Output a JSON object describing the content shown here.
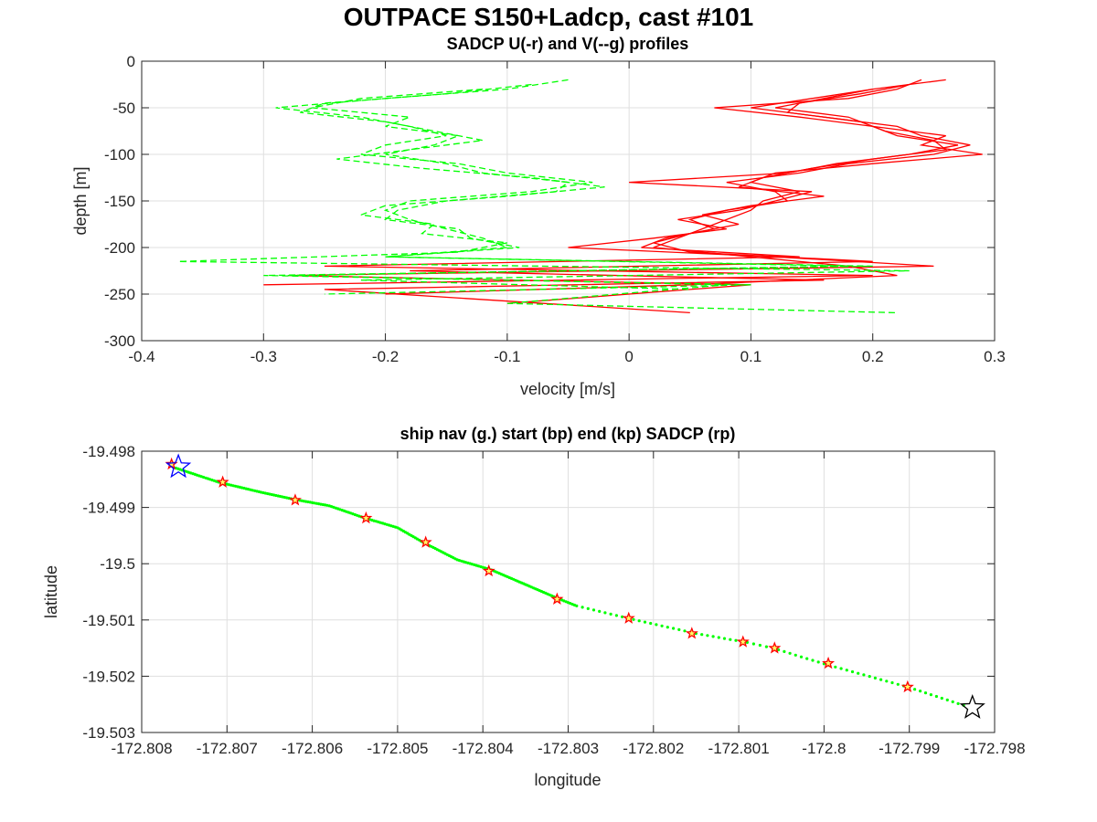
{
  "figure": {
    "title": "OUTPACE S150+Ladcp, cast #101"
  },
  "chart_data": [
    {
      "type": "line",
      "title": "SADCP U(-r) and V(--g) profiles",
      "xlabel": "velocity [m/s]",
      "ylabel": "depth [m]",
      "xlim": [
        -0.4,
        0.3
      ],
      "ylim": [
        -300,
        0
      ],
      "xticks": [
        -0.4,
        -0.3,
        -0.2,
        -0.1,
        0,
        0.1,
        0.2,
        0.3
      ],
      "yticks": [
        0,
        -50,
        -100,
        -150,
        -200,
        -250,
        -300
      ],
      "xtick_labels": [
        "-0.4",
        "-0.3",
        "-0.2",
        "-0.1",
        "0",
        "0.1",
        "0.2",
        "0.3"
      ],
      "ytick_labels": [
        "0",
        "-50",
        "-100",
        "-150",
        "-200",
        "-250",
        "-300"
      ],
      "grid": true,
      "colors": {
        "u": "#ff0000",
        "v": "#00ff00"
      },
      "series": [
        {
          "component": "U",
          "style": "solid",
          "color": "#ff0000",
          "depth": [
            -20,
            -30,
            -40,
            -50,
            -60,
            -70,
            -80,
            -90,
            -100,
            -110,
            -120,
            -130,
            -140,
            -150,
            -160,
            -170,
            -180,
            -190,
            -200,
            -210,
            -220,
            -230,
            -240,
            -250
          ],
          "values": [
            0.24,
            0.22,
            0.18,
            0.07,
            0.14,
            0.2,
            0.26,
            0.24,
            0.29,
            0.2,
            0.12,
            0.1,
            0.14,
            0.11,
            0.1,
            0.08,
            0.06,
            0.04,
            0.02,
            0.1,
            0.18,
            0.22,
            0.05,
            -0.2
          ]
        },
        {
          "component": "U",
          "style": "solid",
          "color": "#ff0000",
          "depth": [
            -20,
            -30,
            -40,
            -50,
            -60,
            -70,
            -80,
            -90,
            -100,
            -110,
            -120,
            -130,
            -140,
            -150,
            -160,
            -170,
            -180,
            -190,
            -200,
            -210,
            -220,
            -230,
            -240
          ],
          "values": [
            0.26,
            0.2,
            0.15,
            0.1,
            0.16,
            0.22,
            0.24,
            0.28,
            0.25,
            0.18,
            0.14,
            0.08,
            0.12,
            0.13,
            0.08,
            0.05,
            0.07,
            0.03,
            0.01,
            0.14,
            -0.25,
            0.2,
            -0.3
          ]
        },
        {
          "component": "U",
          "style": "solid",
          "color": "#ff0000",
          "depth": [
            -30,
            -40,
            -50,
            -60,
            -70,
            -80,
            -90,
            -100,
            -110,
            -120,
            -130,
            -140,
            -150,
            -160,
            -170,
            -180,
            -190,
            -200,
            -210,
            -220,
            -230,
            -240,
            -260
          ],
          "values": [
            0.2,
            0.16,
            0.12,
            0.18,
            0.2,
            0.22,
            0.27,
            0.23,
            0.17,
            0.13,
            0.0,
            0.15,
            0.12,
            0.09,
            0.04,
            0.08,
            0.02,
            -0.05,
            0.12,
            0.25,
            -0.28,
            0.1,
            -0.1
          ]
        },
        {
          "component": "U",
          "style": "solid",
          "color": "#ff0000",
          "depth": [
            -25,
            -35,
            -45,
            -55,
            -65,
            -75,
            -85,
            -95,
            -105,
            -115,
            -125,
            -135,
            -145,
            -155,
            -165,
            -175,
            -185,
            -195,
            -205,
            -215,
            -225,
            -235,
            -245,
            -270
          ],
          "values": [
            0.23,
            0.19,
            0.14,
            0.13,
            0.19,
            0.21,
            0.25,
            0.26,
            0.2,
            0.15,
            0.11,
            0.09,
            0.16,
            0.1,
            0.06,
            0.09,
            0.05,
            0.02,
            0.05,
            0.2,
            -0.18,
            0.16,
            -0.25,
            0.05
          ]
        },
        {
          "component": "V",
          "style": "dashed",
          "color": "#00ff00",
          "depth": [
            -20,
            -30,
            -40,
            -50,
            -60,
            -70,
            -80,
            -90,
            -100,
            -110,
            -120,
            -130,
            -140,
            -150,
            -160,
            -170,
            -180,
            -190,
            -200,
            -210,
            -220,
            -230,
            -240,
            -250
          ],
          "values": [
            -0.05,
            -0.1,
            -0.2,
            -0.29,
            -0.22,
            -0.18,
            -0.15,
            -0.2,
            -0.22,
            -0.14,
            -0.1,
            -0.03,
            -0.08,
            -0.18,
            -0.2,
            -0.18,
            -0.15,
            -0.12,
            -0.1,
            -0.2,
            0.2,
            -0.3,
            0.1,
            -0.25
          ]
        },
        {
          "component": "V",
          "style": "dashed",
          "color": "#00ff00",
          "depth": [
            -25,
            -35,
            -45,
            -55,
            -65,
            -75,
            -85,
            -95,
            -105,
            -115,
            -125,
            -135,
            -145,
            -155,
            -165,
            -175,
            -185,
            -195,
            -205,
            -215,
            -225,
            -235,
            -245
          ],
          "values": [
            -0.08,
            -0.15,
            -0.25,
            -0.27,
            -0.2,
            -0.16,
            -0.12,
            -0.18,
            -0.24,
            -0.17,
            -0.08,
            -0.02,
            -0.1,
            -0.2,
            -0.22,
            -0.16,
            -0.17,
            -0.1,
            -0.14,
            -0.37,
            0.23,
            -0.22,
            0.05
          ]
        },
        {
          "component": "V",
          "style": "dashed",
          "color": "#00ff00",
          "depth": [
            -30,
            -40,
            -50,
            -60,
            -70,
            -80,
            -90,
            -100,
            -110,
            -120,
            -130,
            -140,
            -150,
            -160,
            -170,
            -180,
            -190,
            -200,
            -210,
            -220,
            -230,
            -240,
            -260,
            -270
          ],
          "values": [
            -0.12,
            -0.22,
            -0.26,
            -0.18,
            -0.2,
            -0.14,
            -0.16,
            -0.2,
            -0.15,
            -0.12,
            -0.05,
            -0.06,
            -0.15,
            -0.19,
            -0.2,
            -0.14,
            -0.13,
            -0.09,
            -0.2,
            0.18,
            -0.28,
            0.08,
            -0.1,
            0.22
          ]
        }
      ]
    },
    {
      "type": "scatter",
      "title": "ship nav (g.) start (bp) end (kp) SADCP (rp)",
      "xlabel": "longitude",
      "ylabel": "latitude",
      "xlim": [
        -172.808,
        -172.798
      ],
      "ylim": [
        -19.503,
        -19.498
      ],
      "xticks": [
        -172.808,
        -172.807,
        -172.806,
        -172.805,
        -172.804,
        -172.803,
        -172.802,
        -172.801,
        -172.8,
        -172.799,
        -172.798
      ],
      "yticks": [
        -19.498,
        -19.499,
        -19.5,
        -19.501,
        -19.502,
        -19.503
      ],
      "xtick_labels": [
        "-172.808",
        "-172.807",
        "-172.806",
        "-172.805",
        "-172.804",
        "-172.803",
        "-172.802",
        "-172.801",
        "-172.8",
        "-172.799",
        "-172.798"
      ],
      "ytick_labels": [
        "-19.498",
        "-19.499",
        "-19.5",
        "-19.501",
        "-19.502",
        "-19.503"
      ],
      "grid": true,
      "colors": {
        "nav": "#00ff00",
        "sadcp": "#ff0000",
        "start": "#0000ff",
        "end": "#000000"
      },
      "ship_nav": [
        [
          -172.8076,
          -19.4983
        ],
        [
          -172.8071,
          -19.49855
        ],
        [
          -172.8066,
          -19.49873
        ],
        [
          -172.8062,
          -19.49886
        ],
        [
          -172.8058,
          -19.49897
        ],
        [
          -172.8054,
          -19.49918
        ],
        [
          -172.805,
          -19.49936
        ],
        [
          -172.8047,
          -19.49962
        ],
        [
          -172.8043,
          -19.49993
        ],
        [
          -172.8039,
          -19.50011
        ],
        [
          -172.8035,
          -19.50037
        ],
        [
          -172.8031,
          -19.50063
        ],
        [
          -172.8029,
          -19.50075
        ],
        [
          -172.8023,
          -19.50097
        ],
        [
          -172.8015,
          -19.50124
        ],
        [
          -172.8009,
          -19.5014
        ],
        [
          -172.8006,
          -19.5015
        ],
        [
          -172.8,
          -19.50178
        ],
        [
          -172.799,
          -19.5022
        ],
        [
          -172.7983,
          -19.50255
        ]
      ],
      "sadcp_points": [
        [
          -172.80765,
          -19.49823
        ],
        [
          -172.80705,
          -19.49855
        ],
        [
          -172.8062,
          -19.49887
        ],
        [
          -172.80537,
          -19.49919
        ],
        [
          -172.80467,
          -19.49962
        ],
        [
          -172.80393,
          -19.50013
        ],
        [
          -172.80313,
          -19.50063
        ],
        [
          -172.80229,
          -19.50097
        ],
        [
          -172.80155,
          -19.50124
        ],
        [
          -172.80095,
          -19.50139
        ],
        [
          -172.80058,
          -19.5015
        ],
        [
          -172.79995,
          -19.50177
        ],
        [
          -172.79902,
          -19.50219
        ]
      ],
      "start": [
        -172.80757,
        -19.49828
      ],
      "end": [
        -172.79826,
        -19.50256
      ]
    }
  ]
}
